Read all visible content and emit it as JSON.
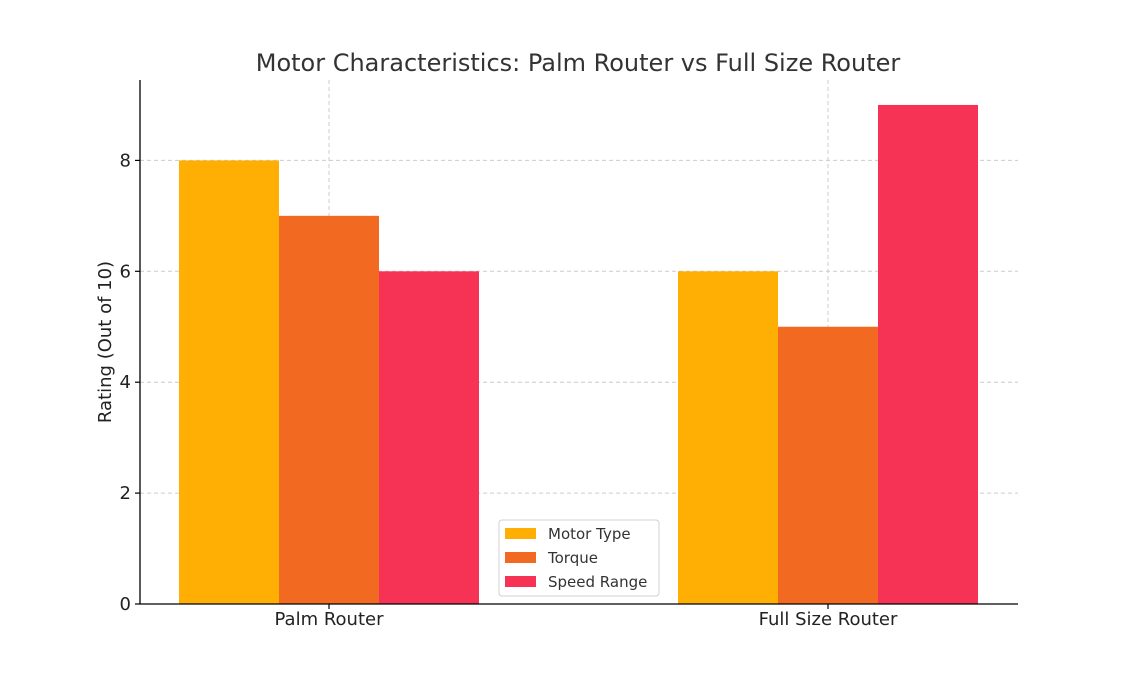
{
  "chart_data": {
    "type": "bar",
    "title": "Motor Characteristics: Palm Router vs Full Size Router",
    "xlabel": "",
    "ylabel": "Rating (Out of 10)",
    "categories": [
      "Palm Router",
      "Full Size Router"
    ],
    "series": [
      {
        "name": "Motor Type",
        "values": [
          8,
          6
        ],
        "color": "#FFAE03"
      },
      {
        "name": "Torque",
        "values": [
          7,
          5
        ],
        "color": "#F26A21"
      },
      {
        "name": "Speed Range",
        "values": [
          6,
          9
        ],
        "color": "#F63355"
      }
    ],
    "ylim": [
      0,
      9.45
    ],
    "yticks": [
      0,
      2,
      4,
      6,
      8
    ],
    "grid": true,
    "legend_position": "bottom-center"
  }
}
